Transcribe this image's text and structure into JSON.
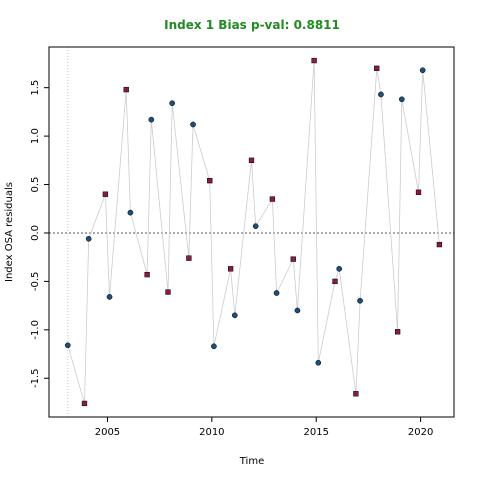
{
  "chart_data": {
    "type": "scatter",
    "title": "Index 1 Bias p-val: 0.8811",
    "xlabel": "Time",
    "ylabel": "Index OSA residuals",
    "xlim": [
      2002.2,
      2021.6
    ],
    "ylim": [
      -1.9,
      1.92
    ],
    "x_ticks": [
      2005,
      2010,
      2015,
      2020
    ],
    "y_ticks": [
      -1.5,
      -1.0,
      -0.5,
      0.0,
      0.5,
      1.0,
      1.5
    ],
    "x_tick_labels": [
      "2005",
      "2010",
      "2015",
      "2020"
    ],
    "y_tick_labels": [
      "-1.5",
      "-1.0",
      "-0.5",
      "0.0",
      "0.5",
      "1.0",
      "1.5"
    ],
    "reference_line_y": 0,
    "reference_line_x": 2003.1,
    "colors": {
      "title": "#228B22",
      "line": "#cccccc",
      "series_a": "#1f4e79",
      "series_b": "#8b1a4a"
    },
    "series": [
      {
        "marker": "circle",
        "color": "#1f4e79",
        "x": [
          2003.1,
          2004.1,
          2005.1,
          2006.1,
          2007.1,
          2008.1,
          2009.1,
          2010.1,
          2011.1,
          2012.1,
          2013.1,
          2014.1,
          2015.1,
          2016.1,
          2017.1,
          2018.1,
          2019.1,
          2020.1
        ],
        "y": [
          -1.16,
          -0.06,
          -0.66,
          0.21,
          1.17,
          1.34,
          1.12,
          -1.17,
          -0.85,
          0.07,
          -0.62,
          -0.8,
          -1.34,
          -0.37,
          -0.7,
          1.43,
          1.38,
          1.68
        ]
      },
      {
        "marker": "square",
        "color": "#8b1a4a",
        "x": [
          2003.9,
          2004.9,
          2005.9,
          2006.9,
          2007.9,
          2008.9,
          2009.9,
          2010.9,
          2011.9,
          2012.9,
          2013.9,
          2014.9,
          2015.9,
          2016.9,
          2017.9,
          2018.9,
          2019.9,
          2020.9
        ],
        "y": [
          -1.76,
          0.4,
          1.48,
          -0.43,
          -0.61,
          -0.26,
          0.54,
          -0.37,
          0.75,
          0.35,
          -0.27,
          1.78,
          -0.5,
          -1.66,
          1.7,
          -1.02,
          0.42,
          -0.12
        ]
      }
    ]
  }
}
